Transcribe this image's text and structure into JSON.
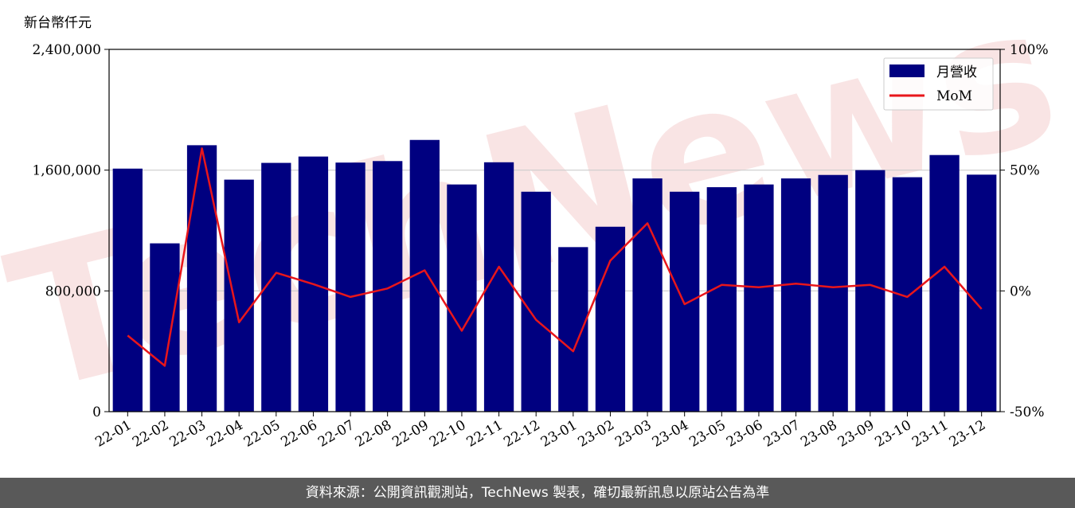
{
  "chart_data": {
    "type": "bar",
    "y_unit_label": "新台幣仟元",
    "categories": [
      "22-01",
      "22-02",
      "22-03",
      "22-04",
      "22-05",
      "22-06",
      "22-07",
      "22-08",
      "22-09",
      "22-10",
      "22-11",
      "22-12",
      "23-01",
      "23-02",
      "23-03",
      "23-04",
      "23-05",
      "23-06",
      "23-07",
      "23-08",
      "23-09",
      "23-10",
      "23-11",
      "23-12"
    ],
    "series": [
      {
        "name": "月營收",
        "type": "bar",
        "axis": "left",
        "values": [
          1610000,
          1115000,
          1765000,
          1537000,
          1648000,
          1690000,
          1650000,
          1660000,
          1800000,
          1505000,
          1652000,
          1457000,
          1090000,
          1225000,
          1545000,
          1457000,
          1487000,
          1505000,
          1545000,
          1568000,
          1600000,
          1553000,
          1700000,
          1570000
        ]
      },
      {
        "name": "MoM",
        "type": "line",
        "axis": "right",
        "values": [
          -18.5,
          -31,
          59,
          -13,
          7.5,
          2.8,
          -2.5,
          1,
          8.5,
          -16.5,
          10,
          -12,
          -25,
          12.5,
          28,
          -5.5,
          2.5,
          1.5,
          3,
          1.5,
          2.5,
          -2.5,
          10,
          -7.5
        ]
      }
    ],
    "y_left": {
      "min": 0,
      "max": 2400000,
      "ticks": [
        0,
        800000,
        1600000,
        2400000
      ],
      "tick_labels": [
        "0",
        "800,000",
        "1,600,000",
        "2,400,000"
      ]
    },
    "y_right": {
      "min": -50,
      "max": 100,
      "ticks": [
        -50,
        0,
        50,
        100
      ],
      "tick_labels": [
        "-50%",
        "0%",
        "50%",
        "100%"
      ]
    },
    "grid": true,
    "legend_position": "top-right",
    "colors": {
      "bar": "#000080",
      "line": "#e8161b",
      "grid": "#cccccc",
      "watermark": "#f5d0d0"
    }
  },
  "watermark_text": "TechNews",
  "footer_text": "資料來源：公開資訊觀測站，TechNews 製表，確切最新訊息以原站公告為準"
}
